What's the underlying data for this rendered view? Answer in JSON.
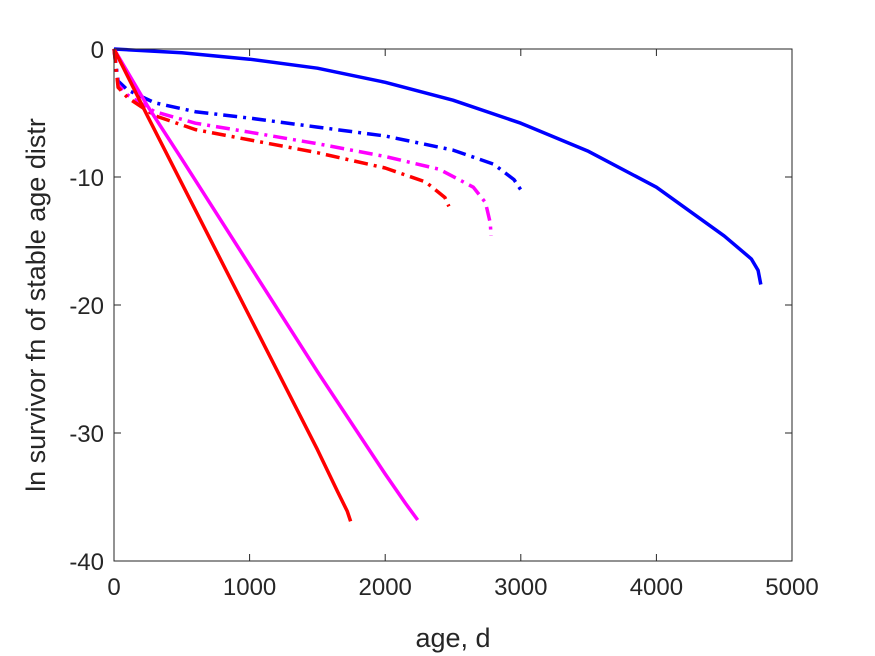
{
  "chart_data": {
    "type": "line",
    "xlabel": "age, d",
    "ylabel": "ln survivor fn of stable age distr",
    "xlim": [
      0,
      5000
    ],
    "ylim": [
      -40,
      0
    ],
    "xticks": [
      0,
      1000,
      2000,
      3000,
      4000,
      5000
    ],
    "yticks": [
      0,
      -10,
      -20,
      -30,
      -40
    ],
    "xtick_labels": [
      "0",
      "1000",
      "2000",
      "3000",
      "4000",
      "5000"
    ],
    "ytick_labels": [
      "0",
      "-10",
      "-20",
      "-30",
      "-40"
    ],
    "grid": false,
    "legend": "none",
    "series": [
      {
        "color": "#0000ff",
        "style": "solid",
        "x": [
          0,
          500,
          1000,
          1500,
          2000,
          2500,
          3000,
          3500,
          4000,
          4500,
          4700,
          4750,
          4770
        ],
        "y": [
          0,
          -0.3,
          -0.8,
          -1.5,
          -2.6,
          -4.0,
          -5.8,
          -8.0,
          -10.8,
          -14.6,
          -16.4,
          -17.3,
          -18.4
        ]
      },
      {
        "color": "#0000ff",
        "style": "dashdot",
        "x": [
          0,
          30,
          100,
          300,
          600,
          1000,
          1500,
          2000,
          2500,
          2800,
          2950,
          3000
        ],
        "y": [
          0,
          -2.5,
          -3.2,
          -4.2,
          -4.9,
          -5.4,
          -6.1,
          -6.8,
          -7.9,
          -9.0,
          -10.2,
          -11.0
        ]
      },
      {
        "color": "#ff00ff",
        "style": "dashdot",
        "x": [
          0,
          30,
          100,
          300,
          600,
          1000,
          1500,
          2000,
          2400,
          2650,
          2740,
          2775,
          2780
        ],
        "y": [
          0,
          -2.8,
          -3.6,
          -4.9,
          -5.8,
          -6.5,
          -7.4,
          -8.4,
          -9.4,
          -10.8,
          -12.0,
          -13.6,
          -14.6
        ]
      },
      {
        "color": "#ff0000",
        "style": "dashdot",
        "x": [
          0,
          30,
          100,
          300,
          600,
          1000,
          1500,
          2000,
          2300,
          2440,
          2470
        ],
        "y": [
          0,
          -3.0,
          -3.8,
          -5.2,
          -6.3,
          -7.1,
          -8.1,
          -9.3,
          -10.4,
          -11.6,
          -12.3
        ]
      },
      {
        "color": "#ff00ff",
        "style": "solid",
        "x": [
          0,
          250,
          500,
          1000,
          1500,
          2000,
          2150,
          2240
        ],
        "y": [
          0,
          -4.5,
          -8.6,
          -16.9,
          -25.2,
          -33.2,
          -35.5,
          -36.8
        ]
      },
      {
        "color": "#ff0000",
        "style": "solid",
        "x": [
          0,
          250,
          500,
          1000,
          1500,
          1650,
          1720,
          1745
        ],
        "y": [
          0,
          -5.3,
          -10.5,
          -20.9,
          -31.3,
          -34.6,
          -36.1,
          -36.9
        ]
      }
    ]
  }
}
